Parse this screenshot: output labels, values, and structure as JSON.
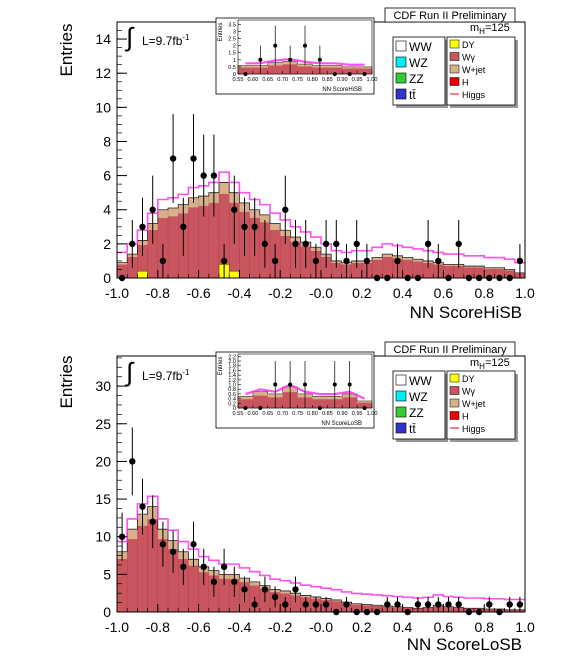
{
  "chart_data": [
    {
      "type": "bar",
      "id": "hisb",
      "header": "CDF Run II Preliminary",
      "mass_label": "m",
      "mass_sub": "H",
      "mass_value": "=125",
      "lumi_prefix": "L=9.7fb",
      "lumi_sup": "-1",
      "xlabel": "NN ScoreHiSB",
      "ylabel": "Entries",
      "xlim": [
        -1.0,
        1.0
      ],
      "ylim": [
        0,
        15
      ],
      "xticks": [
        "-1.0",
        "-0.8",
        "-0.6",
        "-0.4",
        "-0.2",
        "-0.0",
        "0.2",
        "0.4",
        "0.6",
        "0.8",
        "1.0"
      ],
      "yticks": [
        "0",
        "2",
        "4",
        "6",
        "8",
        "10",
        "12",
        "14"
      ],
      "legend_left": [
        "WW",
        "WZ",
        "ZZ",
        "tt̄"
      ],
      "legend_right": [
        "DY",
        "Wγ",
        "W+jet",
        "H",
        "Higgs"
      ],
      "bins": 40,
      "total_mc": [
        0.9,
        1.4,
        2.2,
        3.2,
        4.0,
        4.1,
        4.3,
        4.7,
        4.8,
        5.0,
        5.6,
        5.0,
        4.4,
        4.0,
        3.7,
        3.2,
        2.8,
        2.4,
        2.1,
        1.8,
        1.4,
        1.0,
        0.9,
        1.0,
        1.0,
        1.2,
        1.4,
        1.3,
        1.2,
        1.1,
        1.0,
        0.9,
        0.8,
        0.8,
        0.7,
        0.7,
        0.6,
        0.6,
        0.5,
        0.3
      ],
      "dy": [
        0,
        0,
        0.4,
        0,
        0,
        0,
        0,
        0,
        0,
        0,
        0.8,
        0.4,
        0,
        0,
        0,
        0,
        0,
        0,
        0,
        0,
        0,
        0,
        0,
        0,
        0,
        0,
        0,
        0,
        0,
        0,
        0,
        0,
        0,
        0,
        0,
        0,
        0,
        0,
        0,
        0
      ],
      "data_points": [
        {
          "x": -0.975,
          "y": 0,
          "e": 0
        },
        {
          "x": -0.925,
          "y": 2,
          "e": 1.4
        },
        {
          "x": -0.875,
          "y": 3,
          "e": 1.7
        },
        {
          "x": -0.825,
          "y": 4,
          "e": 2.0
        },
        {
          "x": -0.775,
          "y": 1,
          "e": 1.0
        },
        {
          "x": -0.725,
          "y": 7,
          "e": 2.6
        },
        {
          "x": -0.675,
          "y": 3,
          "e": 1.7
        },
        {
          "x": -0.625,
          "y": 7,
          "e": 2.6
        },
        {
          "x": -0.575,
          "y": 6,
          "e": 2.4
        },
        {
          "x": -0.525,
          "y": 6,
          "e": 2.4
        },
        {
          "x": -0.475,
          "y": 1,
          "e": 1.0
        },
        {
          "x": -0.425,
          "y": 4,
          "e": 2.0
        },
        {
          "x": -0.375,
          "y": 3,
          "e": 1.7
        },
        {
          "x": -0.325,
          "y": 3,
          "e": 1.7
        },
        {
          "x": -0.275,
          "y": 2,
          "e": 1.4
        },
        {
          "x": -0.225,
          "y": 1,
          "e": 1.0
        },
        {
          "x": -0.175,
          "y": 4,
          "e": 2.0
        },
        {
          "x": -0.125,
          "y": 2,
          "e": 1.4
        },
        {
          "x": -0.075,
          "y": 2,
          "e": 1.4
        },
        {
          "x": -0.025,
          "y": 1,
          "e": 1.0
        },
        {
          "x": 0.025,
          "y": 2,
          "e": 1.4
        },
        {
          "x": 0.075,
          "y": 2,
          "e": 1.4
        },
        {
          "x": 0.125,
          "y": 1,
          "e": 1.0
        },
        {
          "x": 0.175,
          "y": 2,
          "e": 1.4
        },
        {
          "x": 0.225,
          "y": 1,
          "e": 1.0
        },
        {
          "x": 0.275,
          "y": 0,
          "e": 0
        },
        {
          "x": 0.325,
          "y": 0,
          "e": 0
        },
        {
          "x": 0.375,
          "y": 1,
          "e": 1.0
        },
        {
          "x": 0.425,
          "y": 0,
          "e": 0
        },
        {
          "x": 0.475,
          "y": 0,
          "e": 0
        },
        {
          "x": 0.525,
          "y": 2,
          "e": 1.4
        },
        {
          "x": 0.575,
          "y": 1,
          "e": 1.0
        },
        {
          "x": 0.625,
          "y": 0,
          "e": 0
        },
        {
          "x": 0.675,
          "y": 2,
          "e": 1.4
        },
        {
          "x": 0.725,
          "y": 0,
          "e": 0
        },
        {
          "x": 0.775,
          "y": 0,
          "e": 0
        },
        {
          "x": 0.825,
          "y": 0,
          "e": 0
        },
        {
          "x": 0.875,
          "y": 0,
          "e": 0
        },
        {
          "x": 0.925,
          "y": 0,
          "e": 0
        },
        {
          "x": 0.975,
          "y": 1,
          "e": 1.0
        }
      ],
      "inset": {
        "xlabel": "NN ScoreHiSB",
        "ylabel": "Entries",
        "xlim": [
          0.55,
          1.0
        ],
        "ylim": [
          0,
          3.8
        ],
        "xticks": [
          "0.55",
          "0.60",
          "0.65",
          "0.70",
          "0.75",
          "0.80",
          "0.85",
          "0.90",
          "0.95",
          "1.00"
        ],
        "yticks": [
          "0",
          "0.5",
          "1",
          "1.5",
          "2",
          "2.5",
          "3",
          "3.5"
        ],
        "total_mc": [
          0.6,
          0.6,
          0.8,
          0.9,
          0.7,
          0.6,
          0.6,
          0.5,
          0.5
        ],
        "data_points": [
          {
            "x": 0.575,
            "y": 0,
            "e": 0
          },
          {
            "x": 0.625,
            "y": 1,
            "e": 1.0
          },
          {
            "x": 0.675,
            "y": 2,
            "e": 1.4
          },
          {
            "x": 0.725,
            "y": 1,
            "e": 1.0
          },
          {
            "x": 0.775,
            "y": 2,
            "e": 1.4
          },
          {
            "x": 0.825,
            "y": 1,
            "e": 1.0
          },
          {
            "x": 0.875,
            "y": 0,
            "e": 0
          },
          {
            "x": 0.925,
            "y": 0,
            "e": 0
          },
          {
            "x": 0.975,
            "y": 0,
            "e": 0
          }
        ]
      }
    },
    {
      "type": "bar",
      "id": "losb",
      "header": "CDF Run II Preliminary",
      "mass_label": "m",
      "mass_sub": "H",
      "mass_value": "=125",
      "lumi_prefix": "L=9.7fb",
      "lumi_sup": "-1",
      "xlabel": "NN ScoreLoSB",
      "ylabel": "Entries",
      "xlim": [
        -1.0,
        1.0
      ],
      "ylim": [
        0,
        34
      ],
      "xticks": [
        "-1.0",
        "-0.8",
        "-0.6",
        "-0.4",
        "-0.2",
        "-0.0",
        "0.2",
        "0.4",
        "0.6",
        "0.8",
        "1.0"
      ],
      "yticks": [
        "0",
        "5",
        "10",
        "15",
        "20",
        "25",
        "30"
      ],
      "legend_left": [
        "WW",
        "WZ",
        "ZZ",
        "tt̄"
      ],
      "legend_right": [
        "DY",
        "Wγ",
        "W+jet",
        "H",
        "Higgs"
      ],
      "bins": 40,
      "total_mc": [
        8.0,
        11.0,
        13.0,
        14.0,
        11.0,
        9.5,
        8.0,
        7.0,
        6.0,
        5.5,
        5.0,
        5.0,
        4.5,
        4.0,
        3.5,
        3.0,
        2.8,
        2.5,
        2.2,
        2.0,
        1.8,
        1.6,
        1.3,
        1.1,
        1.0,
        0.9,
        0.8,
        0.7,
        0.6,
        0.5,
        0.6,
        0.9,
        0.7,
        0.6,
        0.5,
        0.5,
        0.4,
        0.4,
        0.3,
        0.3
      ],
      "dy": [
        0,
        0,
        0,
        0,
        0,
        0,
        0,
        0,
        0,
        0,
        0,
        0,
        0,
        0,
        0,
        0,
        0,
        0,
        0,
        0,
        0,
        0,
        0,
        0,
        0,
        0,
        0,
        0,
        0,
        0,
        0,
        0,
        0,
        0,
        0,
        0,
        0,
        0,
        0,
        0
      ],
      "data_points": [
        {
          "x": -0.975,
          "y": 10,
          "e": 3.2
        },
        {
          "x": -0.925,
          "y": 20,
          "e": 4.5
        },
        {
          "x": -0.875,
          "y": 14,
          "e": 3.7
        },
        {
          "x": -0.825,
          "y": 12,
          "e": 3.5
        },
        {
          "x": -0.775,
          "y": 9,
          "e": 3.0
        },
        {
          "x": -0.725,
          "y": 8,
          "e": 2.8
        },
        {
          "x": -0.675,
          "y": 6,
          "e": 2.4
        },
        {
          "x": -0.625,
          "y": 9,
          "e": 3.0
        },
        {
          "x": -0.575,
          "y": 6,
          "e": 2.4
        },
        {
          "x": -0.525,
          "y": 4,
          "e": 2.0
        },
        {
          "x": -0.475,
          "y": 6,
          "e": 2.4
        },
        {
          "x": -0.425,
          "y": 4,
          "e": 2.0
        },
        {
          "x": -0.375,
          "y": 3,
          "e": 1.7
        },
        {
          "x": -0.325,
          "y": 1,
          "e": 1.0
        },
        {
          "x": -0.275,
          "y": 3,
          "e": 1.7
        },
        {
          "x": -0.225,
          "y": 2,
          "e": 1.4
        },
        {
          "x": -0.175,
          "y": 1,
          "e": 1.0
        },
        {
          "x": -0.125,
          "y": 3,
          "e": 1.7
        },
        {
          "x": -0.075,
          "y": 1,
          "e": 1.0
        },
        {
          "x": -0.025,
          "y": 1,
          "e": 1.0
        },
        {
          "x": 0.025,
          "y": 1,
          "e": 1.0
        },
        {
          "x": 0.075,
          "y": 0,
          "e": 0
        },
        {
          "x": 0.125,
          "y": 1,
          "e": 1.0
        },
        {
          "x": 0.175,
          "y": 0,
          "e": 0
        },
        {
          "x": 0.225,
          "y": 0,
          "e": 0
        },
        {
          "x": 0.275,
          "y": 0,
          "e": 0
        },
        {
          "x": 0.325,
          "y": 1,
          "e": 1.0
        },
        {
          "x": 0.375,
          "y": 1,
          "e": 1.0
        },
        {
          "x": 0.425,
          "y": 0,
          "e": 0
        },
        {
          "x": 0.475,
          "y": 1,
          "e": 1.0
        },
        {
          "x": 0.525,
          "y": 1,
          "e": 1.0
        },
        {
          "x": 0.575,
          "y": 1,
          "e": 1.0
        },
        {
          "x": 0.625,
          "y": 1,
          "e": 1.0
        },
        {
          "x": 0.675,
          "y": 1,
          "e": 1.0
        },
        {
          "x": 0.725,
          "y": 0,
          "e": 0
        },
        {
          "x": 0.775,
          "y": 0,
          "e": 0
        },
        {
          "x": 0.825,
          "y": 1,
          "e": 1.0
        },
        {
          "x": 0.875,
          "y": 0,
          "e": 0
        },
        {
          "x": 0.925,
          "y": 1,
          "e": 1.0
        },
        {
          "x": 0.975,
          "y": 1,
          "e": 1.0
        }
      ],
      "inset": {
        "xlabel": "NN ScoreLoSB",
        "ylabel": "Entries",
        "xlim": [
          0.55,
          1.0
        ],
        "ylim": [
          0,
          2.3
        ],
        "xticks": [
          "0.55",
          "0.60",
          "0.65",
          "0.70",
          "0.75",
          "0.80",
          "0.85",
          "0.90",
          "0.95",
          "1.00"
        ],
        "yticks": [
          "0",
          "0.2",
          "0.4",
          "0.6",
          "0.8",
          "1.0",
          "1.2",
          "1.4",
          "1.6",
          "1.8",
          "2.0",
          "2.2"
        ],
        "total_mc": [
          0.5,
          0.7,
          0.6,
          0.9,
          0.6,
          0.5,
          0.5,
          0.6,
          0.3
        ],
        "data_points": [
          {
            "x": 0.575,
            "y": 0,
            "e": 0
          },
          {
            "x": 0.625,
            "y": 0,
            "e": 0
          },
          {
            "x": 0.675,
            "y": 1,
            "e": 1.0
          },
          {
            "x": 0.725,
            "y": 1,
            "e": 1.0
          },
          {
            "x": 0.775,
            "y": 1,
            "e": 1.0
          },
          {
            "x": 0.825,
            "y": 0,
            "e": 0
          },
          {
            "x": 0.875,
            "y": 1,
            "e": 1.0
          },
          {
            "x": 0.925,
            "y": 1,
            "e": 1.0
          },
          {
            "x": 0.975,
            "y": 0,
            "e": 0
          }
        ]
      }
    }
  ],
  "colors": {
    "total_mc": "#c9555f",
    "wgamma_edge": "#000000",
    "wjet": "#d8b08c",
    "dy": "#ffff00",
    "higgs": "#ff33ee",
    "ww": "#ffffff",
    "wz": "#00eeee",
    "zz": "#33cc33",
    "tt": "#3333cc",
    "h": "#ee0000",
    "data": "#000000"
  }
}
